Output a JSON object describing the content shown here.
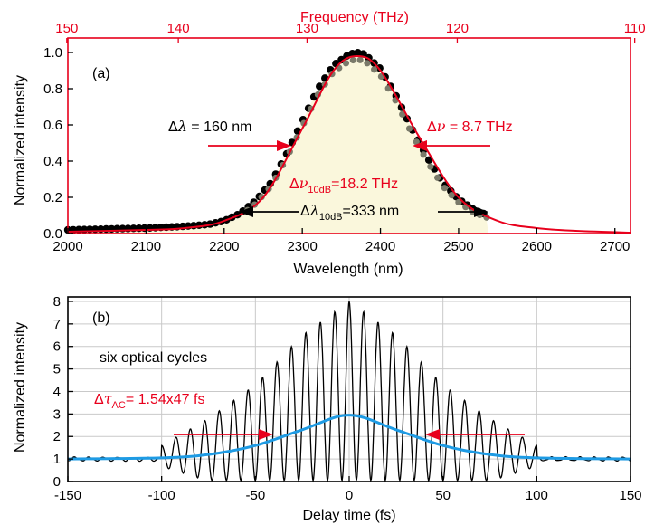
{
  "colors": {
    "red": "#e8001c",
    "blue": "#1e9be4",
    "fill": "#faf7dc",
    "dots": "#000000",
    "dots_grey": "#7a7a6a",
    "grid": "#c9c9c9"
  },
  "chart_data": [
    {
      "type": "scatter",
      "panel_label": "(a)",
      "xlabel": "Wavelength (nm)",
      "ylabel": "Normalized intensity",
      "xlim": [
        2000,
        2720
      ],
      "ylim": [
        0,
        1.08
      ],
      "x_ticks": [
        2000,
        2100,
        2200,
        2300,
        2400,
        2500,
        2600,
        2700
      ],
      "y_ticks": [
        0.0,
        0.2,
        0.4,
        0.6,
        0.8,
        1.0
      ],
      "top_axis": {
        "label": "Frequency (THz)",
        "ticks": [
          150,
          140,
          130,
          120,
          110
        ]
      },
      "series": [
        {
          "kind": "measured spectrum (dots, filled)",
          "x": [
            2000,
            2050,
            2100,
            2150,
            2180,
            2200,
            2220,
            2240,
            2260,
            2280,
            2300,
            2320,
            2340,
            2360,
            2370,
            2380,
            2400,
            2420,
            2440,
            2460,
            2480,
            2500,
            2520,
            2538
          ],
          "y": [
            0.02,
            0.025,
            0.03,
            0.04,
            0.05,
            0.07,
            0.11,
            0.18,
            0.28,
            0.44,
            0.62,
            0.8,
            0.93,
            0.99,
            1.0,
            0.99,
            0.91,
            0.76,
            0.58,
            0.42,
            0.28,
            0.19,
            0.13,
            0.1
          ]
        },
        {
          "kind": "fit (red line)",
          "x": [
            2000,
            2100,
            2150,
            2200,
            2250,
            2300,
            2340,
            2370,
            2400,
            2450,
            2500,
            2550,
            2600,
            2650,
            2720
          ],
          "y": [
            0.01,
            0.02,
            0.03,
            0.07,
            0.2,
            0.58,
            0.9,
            0.98,
            0.9,
            0.53,
            0.2,
            0.07,
            0.03,
            0.015,
            0.005
          ]
        }
      ],
      "annotations": {
        "dlambda_prefix": "Δ",
        "dlambda_sym": "λ",
        "dlambda_text": " = 160 nm",
        "dnu_prefix": "Δ",
        "dnu_sym": "ν",
        "dnu_text": " = 8.7 THz",
        "dnu10_prefix": "Δ",
        "dnu10_sym": "ν",
        "dnu10_sub": "10dB",
        "dnu10_text": "=18.2 THz",
        "dl10_prefix": "Δ",
        "dl10_sym": "λ",
        "dl10_sub": "10dB",
        "dl10_text": "=333 nm"
      }
    },
    {
      "type": "line",
      "panel_label": "(b)",
      "xlabel": "Delay time (fs)",
      "ylabel": "Normalized intensity",
      "xlim": [
        -150,
        150
      ],
      "ylim": [
        0,
        8.2
      ],
      "x_ticks": [
        -150,
        -100,
        -50,
        0,
        50,
        100,
        150
      ],
      "y_ticks": [
        0,
        1,
        2,
        3,
        4,
        5,
        6,
        7,
        8
      ],
      "grid": true,
      "series": [
        {
          "kind": "interferometric autocorrelation (black)",
          "center_peak": 8.0,
          "baseline": 1.0,
          "period_fs": 7.7,
          "x": [
            -150,
            -100,
            -75,
            -50,
            -25,
            0,
            25,
            50,
            75,
            100,
            150
          ],
          "y_upper_envelope": [
            1.1,
            1.6,
            2.8,
            4.3,
            6.5,
            8.0,
            6.5,
            4.3,
            2.8,
            1.6,
            1.1
          ]
        },
        {
          "kind": "intensity autocorrelation (blue)",
          "x": [
            -150,
            -100,
            -75,
            -50,
            -25,
            0,
            25,
            50,
            75,
            100,
            150
          ],
          "y": [
            1.0,
            1.05,
            1.2,
            1.6,
            2.3,
            2.95,
            2.3,
            1.6,
            1.2,
            1.05,
            1.0
          ]
        }
      ],
      "annotations": {
        "cycles_text": "six optical cycles",
        "dtau_prefix": "Δ",
        "dtau_sym": "τ",
        "dtau_sub": "AC",
        "dtau_text": "= 1.54x47 fs"
      }
    }
  ]
}
